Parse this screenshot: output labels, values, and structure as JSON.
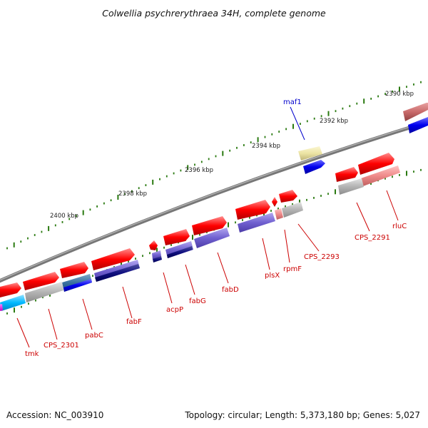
{
  "title": "Colwellia psychrerythraea 34H, complete genome",
  "footer": {
    "accession": "Accession: NC_003910",
    "summary": "Topology: circular; Length: 5,373,180 bp; Genes: 5,027"
  },
  "scale_labels": [
    "2390 kbp",
    "2392 kbp",
    "2394 kbp",
    "2396 kbp",
    "2398 kbp",
    "2400 kbp"
  ],
  "genes": [
    {
      "name": "maf1",
      "color": "blue"
    },
    {
      "name": "rluC",
      "color": "red"
    },
    {
      "name": "CPS_2291",
      "color": "red"
    },
    {
      "name": "CPS_2293",
      "color": "red"
    },
    {
      "name": "rpmF",
      "color": "red"
    },
    {
      "name": "plsX",
      "color": "red"
    },
    {
      "name": "fabD",
      "color": "red"
    },
    {
      "name": "fabG",
      "color": "red"
    },
    {
      "name": "acpP",
      "color": "red"
    },
    {
      "name": "fabF",
      "color": "red"
    },
    {
      "name": "pabC",
      "color": "red"
    },
    {
      "name": "CPS_2301",
      "color": "red"
    },
    {
      "name": "tmk",
      "color": "red"
    }
  ],
  "colors": {
    "backbone": "#808080",
    "gene_red": "#ff0000",
    "gene_pink": "#ef8a8a",
    "gene_blue": "#0000ee",
    "gene_purple": "#7060d0",
    "gene_gray": "#b4b4b4",
    "gene_cyan": "#00b8ff",
    "gene_yellow": "#ece4a4",
    "tick_green": "#2a7a10",
    "label_red": "#cc0000",
    "label_blue": "#0000cc"
  }
}
